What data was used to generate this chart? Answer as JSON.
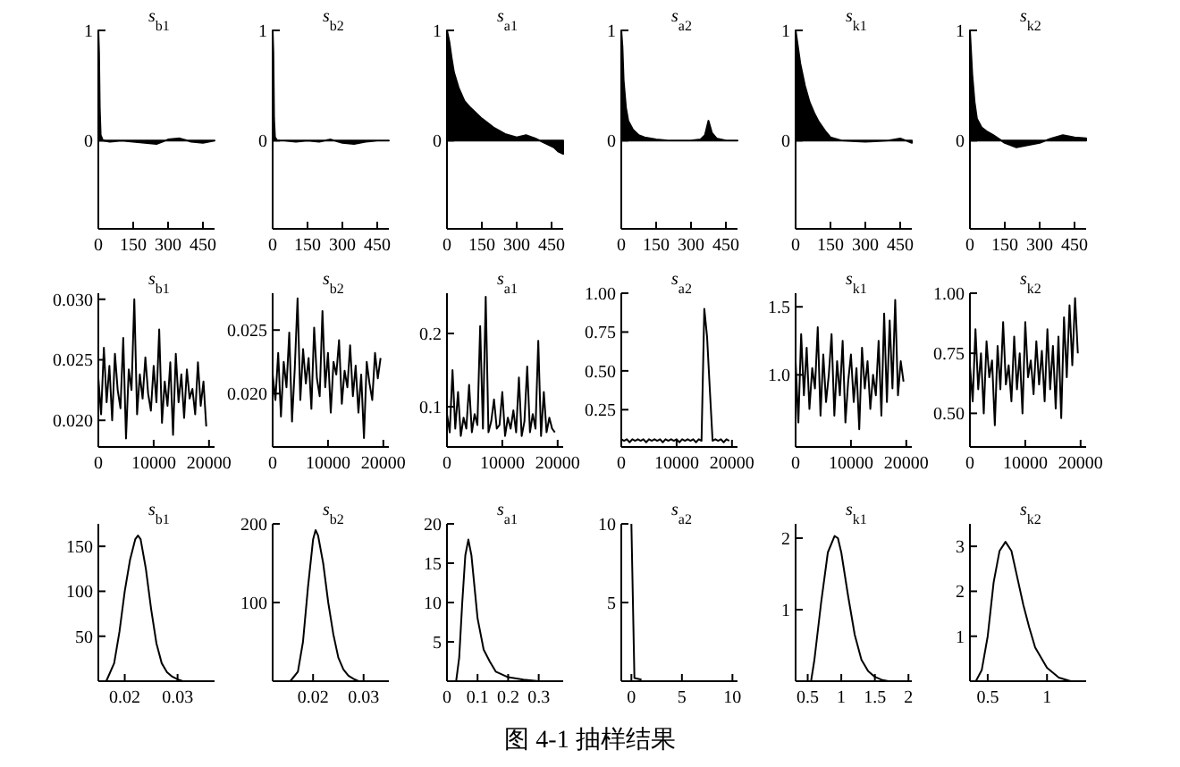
{
  "chart_data": [
    {
      "type": "area",
      "title": "s$_{b1}$",
      "x": [
        0,
        3,
        6,
        10,
        20,
        50,
        100,
        150,
        200,
        250,
        300,
        350,
        400,
        450,
        500
      ],
      "values": [
        1,
        0.8,
        0.3,
        0.05,
        0,
        -0.01,
        0,
        -0.01,
        -0.02,
        -0.03,
        0.01,
        0.02,
        -0.01,
        -0.02,
        0
      ],
      "xlim": [
        0,
        500
      ],
      "ylim": [
        -0.8,
        1
      ],
      "xticks": [
        0,
        150,
        300,
        450
      ],
      "yticks": [
        0,
        1
      ]
    },
    {
      "type": "area",
      "title": "s$_{b2}$",
      "x": [
        0,
        3,
        6,
        10,
        20,
        50,
        100,
        150,
        200,
        250,
        300,
        350,
        400,
        450,
        500
      ],
      "values": [
        1,
        0.8,
        0.2,
        0.03,
        0,
        0,
        -0.01,
        0,
        -0.01,
        0.01,
        -0.02,
        -0.03,
        -0.01,
        0,
        0
      ],
      "xlim": [
        0,
        500
      ],
      "ylim": [
        -0.8,
        1
      ],
      "xticks": [
        0,
        150,
        300,
        450
      ],
      "yticks": [
        0,
        1
      ]
    },
    {
      "type": "area",
      "title": "s$_{a1}$",
      "x": [
        0,
        10,
        20,
        30,
        50,
        75,
        100,
        150,
        200,
        250,
        300,
        340,
        380,
        420,
        460,
        480,
        500
      ],
      "values": [
        1,
        0.9,
        0.75,
        0.62,
        0.48,
        0.36,
        0.3,
        0.2,
        0.12,
        0.06,
        0.03,
        0.05,
        0.02,
        -0.02,
        -0.06,
        -0.1,
        -0.12
      ],
      "xlim": [
        0,
        500
      ],
      "ylim": [
        -0.8,
        1
      ],
      "xticks": [
        0,
        150,
        300,
        450
      ],
      "yticks": [
        0,
        1
      ]
    },
    {
      "type": "area",
      "title": "s$_{a2}$",
      "x": [
        0,
        5,
        10,
        20,
        30,
        50,
        75,
        100,
        150,
        200,
        300,
        340,
        360,
        375,
        390,
        410,
        450,
        500
      ],
      "values": [
        1,
        0.85,
        0.55,
        0.3,
        0.18,
        0.1,
        0.05,
        0.03,
        0.01,
        0,
        0,
        0.01,
        0.05,
        0.18,
        0.07,
        0.02,
        0,
        0
      ],
      "xlim": [
        0,
        500
      ],
      "ylim": [
        -0.8,
        1
      ],
      "xticks": [
        0,
        150,
        300,
        450
      ],
      "yticks": [
        0,
        1
      ]
    },
    {
      "type": "area",
      "title": "s$_{k1}$",
      "x": [
        0,
        10,
        20,
        40,
        60,
        80,
        100,
        130,
        150,
        200,
        300,
        400,
        450,
        500
      ],
      "values": [
        1,
        0.85,
        0.7,
        0.5,
        0.35,
        0.25,
        0.17,
        0.08,
        0.03,
        0,
        -0.01,
        0,
        0.02,
        -0.02
      ],
      "xlim": [
        0,
        500
      ],
      "ylim": [
        -0.8,
        1
      ],
      "xticks": [
        0,
        150,
        300,
        450
      ],
      "yticks": [
        0,
        1
      ]
    },
    {
      "type": "area",
      "title": "s$_{k2}$",
      "x": [
        0,
        5,
        10,
        20,
        30,
        50,
        75,
        100,
        150,
        200,
        250,
        300,
        350,
        400,
        450,
        500
      ],
      "values": [
        1,
        0.8,
        0.6,
        0.35,
        0.2,
        0.12,
        0.08,
        0.05,
        -0.02,
        -0.06,
        -0.04,
        -0.02,
        0.02,
        0.05,
        0.03,
        0.02
      ],
      "xlim": [
        0,
        500
      ],
      "ylim": [
        -0.8,
        1
      ],
      "xticks": [
        0,
        150,
        300,
        450
      ],
      "yticks": [
        0,
        1
      ]
    },
    {
      "type": "line",
      "title": "s$_{b1}$",
      "x": [
        0,
        500,
        1000,
        1500,
        2000,
        2500,
        3000,
        3500,
        4000,
        4500,
        5000,
        5500,
        6000,
        6500,
        7000,
        7500,
        8000,
        8500,
        9000,
        9500,
        10000,
        10500,
        11000,
        11500,
        12000,
        12500,
        13000,
        13500,
        14000,
        14500,
        15000,
        15500,
        16000,
        16500,
        17000,
        17500,
        18000,
        18500,
        19000,
        19500
      ],
      "values": [
        0.0235,
        0.0205,
        0.026,
        0.0215,
        0.0245,
        0.02,
        0.0255,
        0.0225,
        0.021,
        0.0268,
        0.0185,
        0.0242,
        0.0225,
        0.03,
        0.0205,
        0.0238,
        0.0218,
        0.0252,
        0.0222,
        0.0208,
        0.0245,
        0.0215,
        0.0275,
        0.0198,
        0.0232,
        0.0212,
        0.0248,
        0.0188,
        0.0255,
        0.0215,
        0.0238,
        0.0202,
        0.0242,
        0.0218,
        0.0226,
        0.0205,
        0.0248,
        0.0212,
        0.0232,
        0.0195
      ],
      "xlim": [
        0,
        21000
      ],
      "ylim": [
        0.0178,
        0.0305
      ],
      "xticks": [
        0,
        10000,
        20000
      ],
      "yticks": [
        {
          "value": 0.02,
          "label": "0.020"
        },
        {
          "value": 0.025,
          "label": "0.025"
        },
        {
          "value": 0.03,
          "label": "0.030"
        }
      ]
    },
    {
      "type": "line",
      "title": "s$_{b2}$",
      "x": [
        0,
        500,
        1000,
        1500,
        2000,
        2500,
        3000,
        3500,
        4000,
        4500,
        5000,
        5500,
        6000,
        6500,
        7000,
        7500,
        8000,
        8500,
        9000,
        9500,
        10000,
        10500,
        11000,
        11500,
        12000,
        12500,
        13000,
        13500,
        14000,
        14500,
        15000,
        15500,
        16000,
        16500,
        17000,
        17500,
        18000,
        18500,
        19000,
        19500
      ],
      "values": [
        0.0215,
        0.0195,
        0.0232,
        0.0182,
        0.0225,
        0.0205,
        0.0248,
        0.0178,
        0.022,
        0.0275,
        0.0195,
        0.0235,
        0.0208,
        0.0228,
        0.0188,
        0.0252,
        0.0212,
        0.0198,
        0.0265,
        0.0205,
        0.0232,
        0.0185,
        0.0225,
        0.0215,
        0.0242,
        0.0192,
        0.0218,
        0.0205,
        0.0238,
        0.0198,
        0.0222,
        0.0185,
        0.0215,
        0.0165,
        0.0225,
        0.0208,
        0.0195,
        0.0232,
        0.0212,
        0.0228
      ],
      "xlim": [
        0,
        21000
      ],
      "ylim": [
        0.0158,
        0.0279
      ],
      "xticks": [
        0,
        10000,
        20000
      ],
      "yticks": [
        {
          "value": 0.02,
          "label": "0.020"
        },
        {
          "value": 0.025,
          "label": "0.025"
        }
      ]
    },
    {
      "type": "line",
      "title": "s$_{a1}$",
      "x": [
        0,
        500,
        1000,
        1500,
        2000,
        2500,
        3000,
        3500,
        4000,
        4500,
        5000,
        5500,
        6000,
        6500,
        7000,
        7500,
        8000,
        8500,
        9000,
        9500,
        10000,
        10500,
        11000,
        11500,
        12000,
        12500,
        13000,
        13500,
        14000,
        14500,
        15000,
        15500,
        16000,
        16500,
        17000,
        17500,
        18000,
        18500,
        19000,
        19500
      ],
      "values": [
        0.09,
        0.065,
        0.15,
        0.07,
        0.12,
        0.06,
        0.085,
        0.07,
        0.13,
        0.065,
        0.09,
        0.075,
        0.21,
        0.07,
        0.25,
        0.065,
        0.08,
        0.11,
        0.07,
        0.075,
        0.12,
        0.06,
        0.085,
        0.07,
        0.095,
        0.065,
        0.14,
        0.06,
        0.08,
        0.155,
        0.065,
        0.09,
        0.07,
        0.19,
        0.06,
        0.12,
        0.065,
        0.085,
        0.07,
        0.065
      ],
      "xlim": [
        0,
        21000
      ],
      "ylim": [
        0.045,
        0.255
      ],
      "xticks": [
        0,
        10000,
        20000
      ],
      "yticks": [
        0.1,
        0.2
      ]
    },
    {
      "type": "line",
      "title": "s$_{a2}$",
      "x": [
        0,
        500,
        1000,
        1500,
        2000,
        2500,
        3000,
        3500,
        4000,
        4500,
        5000,
        5500,
        6000,
        6500,
        7000,
        7500,
        8000,
        8500,
        9000,
        9500,
        10000,
        10500,
        11000,
        11500,
        12000,
        12500,
        13000,
        13500,
        14000,
        14500,
        15000,
        15500,
        16000,
        16500,
        17000,
        17500,
        18000,
        18500,
        19000,
        19500
      ],
      "values": [
        0.06,
        0.05,
        0.06,
        0.04,
        0.06,
        0.05,
        0.06,
        0.05,
        0.06,
        0.04,
        0.06,
        0.05,
        0.06,
        0.05,
        0.06,
        0.04,
        0.06,
        0.05,
        0.06,
        0.05,
        0.06,
        0.04,
        0.06,
        0.05,
        0.06,
        0.05,
        0.06,
        0.04,
        0.06,
        0.05,
        0.9,
        0.72,
        0.38,
        0.05,
        0.06,
        0.05,
        0.06,
        0.04,
        0.06,
        0.05
      ],
      "xlim": [
        0,
        21000
      ],
      "ylim": [
        0.01,
        1.0
      ],
      "xticks": [
        0,
        10000,
        20000
      ],
      "yticks": [
        {
          "value": 0.25,
          "label": "0.25"
        },
        {
          "value": 0.5,
          "label": "0.50"
        },
        {
          "value": 0.75,
          "label": "0.75"
        },
        {
          "value": 1,
          "label": "1.00"
        }
      ]
    },
    {
      "type": "line",
      "title": "s$_{k1}$",
      "x": [
        0,
        500,
        1000,
        1500,
        2000,
        2500,
        3000,
        3500,
        4000,
        4500,
        5000,
        5500,
        6000,
        6500,
        7000,
        7500,
        8000,
        8500,
        9000,
        9500,
        10000,
        10500,
        11000,
        11500,
        12000,
        12500,
        13000,
        13500,
        14000,
        14500,
        15000,
        15500,
        16000,
        16500,
        17000,
        17500,
        18000,
        18500,
        19000,
        19500
      ],
      "values": [
        1.1,
        0.65,
        1.3,
        0.85,
        1.2,
        0.75,
        1.05,
        0.9,
        1.35,
        0.7,
        1.15,
        0.8,
        1.0,
        1.3,
        0.7,
        1.1,
        0.85,
        1.25,
        0.65,
        0.95,
        1.15,
        0.8,
        1.05,
        0.6,
        1.2,
        0.9,
        1.1,
        0.75,
        1.0,
        0.85,
        1.25,
        0.7,
        1.45,
        0.8,
        1.4,
        0.9,
        1.55,
        0.85,
        1.1,
        0.95
      ],
      "xlim": [
        0,
        21000
      ],
      "ylim": [
        0.47,
        1.6
      ],
      "xticks": [
        0,
        10000,
        20000
      ],
      "yticks": [
        {
          "value": 1,
          "label": "1.0"
        },
        1.5
      ]
    },
    {
      "type": "line",
      "title": "s$_{k2}$",
      "x": [
        0,
        500,
        1000,
        1500,
        2000,
        2500,
        3000,
        3500,
        4000,
        4500,
        5000,
        5500,
        6000,
        6500,
        7000,
        7500,
        8000,
        8500,
        9000,
        9500,
        10000,
        10500,
        11000,
        11500,
        12000,
        12500,
        13000,
        13500,
        14000,
        14500,
        15000,
        15500,
        16000,
        16500,
        17000,
        17500,
        18000,
        18500,
        19000,
        19500
      ],
      "values": [
        0.7,
        0.55,
        0.85,
        0.6,
        0.75,
        0.5,
        0.8,
        0.65,
        0.72,
        0.45,
        0.78,
        0.6,
        0.88,
        0.62,
        0.7,
        0.55,
        0.82,
        0.6,
        0.75,
        0.5,
        0.88,
        0.65,
        0.72,
        0.58,
        0.8,
        0.62,
        0.76,
        0.55,
        0.85,
        0.6,
        0.78,
        0.52,
        0.82,
        0.48,
        0.9,
        0.65,
        0.95,
        0.7,
        0.98,
        0.75
      ],
      "xlim": [
        0,
        21000
      ],
      "ylim": [
        0.36,
        1.0
      ],
      "xticks": [
        0,
        10000,
        20000
      ],
      "yticks": [
        {
          "value": 0.5,
          "label": "0.50"
        },
        {
          "value": 0.75,
          "label": "0.75"
        },
        {
          "value": 1,
          "label": "1.00"
        }
      ]
    },
    {
      "type": "line",
      "title": "s$_{b1}$",
      "x": [
        0.0165,
        0.018,
        0.019,
        0.02,
        0.021,
        0.022,
        0.0225,
        0.023,
        0.024,
        0.025,
        0.026,
        0.027,
        0.028,
        0.029,
        0.03,
        0.031
      ],
      "values": [
        0,
        20,
        55,
        100,
        135,
        158,
        162,
        158,
        125,
        80,
        42,
        20,
        10,
        5,
        2,
        0
      ],
      "xlim": [
        0.015,
        0.037
      ],
      "ylim": [
        0,
        175
      ],
      "xticks": [
        0.02,
        0.03
      ],
      "yticks": [
        50,
        100,
        150
      ]
    },
    {
      "type": "line",
      "title": "s$_{b2}$",
      "x": [
        0.0155,
        0.017,
        0.018,
        0.019,
        0.02,
        0.0205,
        0.021,
        0.022,
        0.023,
        0.024,
        0.025,
        0.026,
        0.027,
        0.028,
        0.029
      ],
      "values": [
        0,
        12,
        50,
        120,
        180,
        192,
        185,
        150,
        100,
        60,
        30,
        15,
        7,
        3,
        0
      ],
      "xlim": [
        0.012,
        0.035
      ],
      "ylim": [
        0,
        200
      ],
      "xticks": [
        0.02,
        0.03
      ],
      "yticks": [
        100,
        200
      ]
    },
    {
      "type": "line",
      "title": "s$_{a1}$",
      "x": [
        0.03,
        0.04,
        0.05,
        0.06,
        0.07,
        0.08,
        0.09,
        0.1,
        0.12,
        0.14,
        0.16,
        0.2,
        0.25,
        0.3
      ],
      "values": [
        0,
        3,
        10,
        16,
        18,
        16,
        12,
        8,
        4,
        2.5,
        1.2,
        0.5,
        0.2,
        0
      ],
      "xlim": [
        0,
        0.38
      ],
      "ylim": [
        0,
        20
      ],
      "xticks": [
        0,
        0.1,
        0.2,
        0.3
      ],
      "yticks": [
        5,
        10,
        15,
        20
      ]
    },
    {
      "type": "line",
      "title": "s$_{a2}$",
      "x": [
        0,
        0.3,
        1
      ],
      "values": [
        10,
        0.2,
        0.1
      ],
      "xlim": [
        -1,
        10.5
      ],
      "ylim": [
        0,
        10
      ],
      "xticks": [
        0,
        5,
        10
      ],
      "yticks": [
        5,
        10
      ]
    },
    {
      "type": "line",
      "title": "s$_{k1}$",
      "x": [
        0.55,
        0.6,
        0.7,
        0.8,
        0.9,
        0.95,
        1.0,
        1.1,
        1.2,
        1.3,
        1.4,
        1.5,
        1.6,
        1.7
      ],
      "values": [
        0,
        0.3,
        1.1,
        1.8,
        2.03,
        2.0,
        1.8,
        1.2,
        0.65,
        0.3,
        0.14,
        0.06,
        0.02,
        0
      ],
      "xlim": [
        0.32,
        2.05
      ],
      "ylim": [
        0,
        2.2
      ],
      "xticks": [
        0.5,
        1,
        1.5,
        2
      ],
      "yticks": [
        1,
        2
      ]
    },
    {
      "type": "line",
      "title": "s$_{k2}$",
      "x": [
        0.4,
        0.45,
        0.5,
        0.55,
        0.6,
        0.65,
        0.7,
        0.75,
        0.8,
        0.85,
        0.9,
        1.0,
        1.1,
        1.2
      ],
      "values": [
        0,
        0.25,
        1,
        2.2,
        2.9,
        3.1,
        2.9,
        2.3,
        1.7,
        1.2,
        0.75,
        0.3,
        0.08,
        0
      ],
      "xlim": [
        0.35,
        1.33
      ],
      "ylim": [
        0,
        3.5
      ],
      "xticks": [
        0.5,
        1
      ],
      "yticks": [
        1,
        2,
        3
      ]
    },
    {
      "type": "other",
      "title": "图 4-1  抽样结果"
    }
  ]
}
